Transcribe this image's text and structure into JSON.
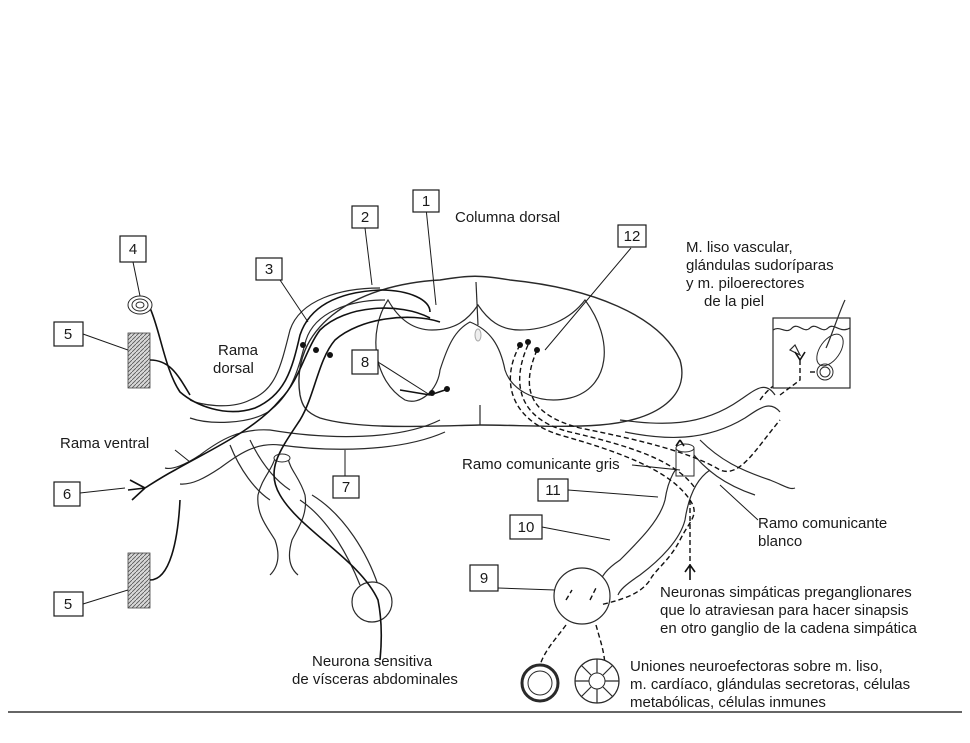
{
  "labels": {
    "columna_dorsal": "Columna dorsal",
    "rama_dorsal_1": "Rama",
    "rama_dorsal_2": "dorsal",
    "rama_ventral": "Rama ventral",
    "skin_1": "M. liso vascular,",
    "skin_2": "glándulas sudoríparas",
    "skin_3": "y m. piloerectores",
    "skin_4": "de la piel",
    "ramo_gris": "Ramo comunicante gris",
    "ramo_blanco_1": "Ramo comunicante",
    "ramo_blanco_2": "blanco",
    "pregang_1": "Neuronas simpáticas preganglionares",
    "pregang_2": "que lo atraviesan para hacer sinapsis",
    "pregang_3": "en otro ganglio de la cadena simpática",
    "sensitiva_1": "Neurona sensitiva",
    "sensitiva_2": "de vísceras abdominales",
    "uniones_1": "Uniones neuroefectoras sobre m. liso,",
    "uniones_2": "m. cardíaco, glándulas secretoras, células",
    "uniones_3": "metabólicas, células inmunes"
  },
  "callouts": {
    "n1": "1",
    "n2": "2",
    "n3": "3",
    "n4": "4",
    "n5a": "5",
    "n5b": "5",
    "n6": "6",
    "n7": "7",
    "n8": "8",
    "n9": "9",
    "n10": "10",
    "n11": "11",
    "n12": "12"
  }
}
